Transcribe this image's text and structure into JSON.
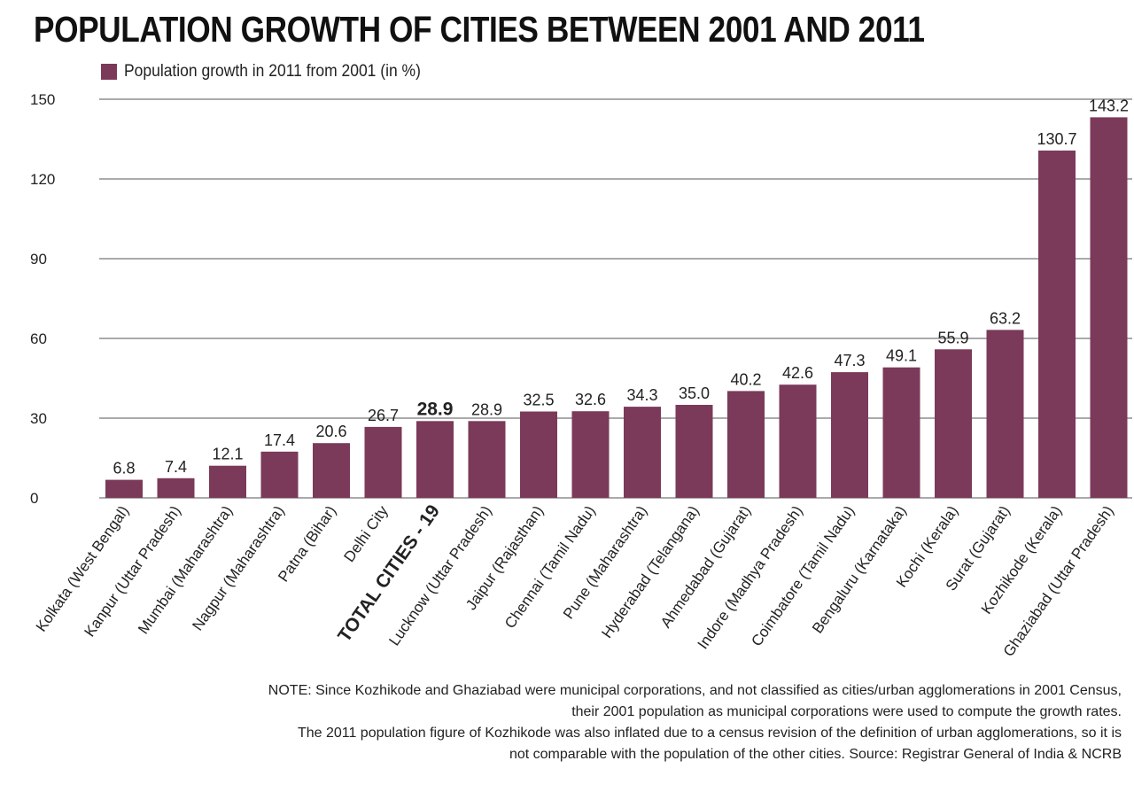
{
  "chart_data": {
    "type": "bar",
    "title": "POPULATION GROWTH OF CITIES BETWEEN 2001 AND 2011",
    "legend": [
      {
        "label": "Population growth in 2011 from 2001    (in %)",
        "color": "#7b3a5a"
      }
    ],
    "xlabel": "",
    "ylabel": "",
    "ylim": [
      0,
      150
    ],
    "yticks": [
      0,
      30,
      60,
      90,
      120,
      150
    ],
    "grid": true,
    "legend_position": "top-left",
    "bar_color": "#7b3a5a",
    "categories": [
      "Kolkata (West Bengal)",
      "Kanpur (Uttar Pradesh)",
      "Mumbai (Maharashtra)",
      "Nagpur (Maharashtra)",
      "Patna (Bihar)",
      "Delhi City",
      "TOTAL CITIES - 19",
      "Lucknow (Uttar Pradesh)",
      "Jaipur (Rajasthan)",
      "Chennai (Tamil Nadu)",
      "Pune (Maharashtra)",
      "Hyderabad (Telangana)",
      "Ahmedabad (Gujarat)",
      "Indore (Madhya Pradesh)",
      "Coimbatore (Tamil Nadu)",
      "Bengaluru (Karnataka)",
      "Kochi (Kerala)",
      "Surat (Gujarat)",
      "Kozhikode (Kerala)",
      "Ghaziabad (Uttar Pradesh)"
    ],
    "values": [
      6.8,
      7.4,
      12.1,
      17.4,
      20.6,
      26.7,
      28.9,
      28.9,
      32.5,
      32.6,
      34.3,
      35.0,
      40.2,
      42.6,
      47.3,
      49.1,
      55.9,
      63.2,
      130.7,
      143.2
    ],
    "value_labels": [
      "6.8",
      "7.4",
      "12.1",
      "17.4",
      "20.6",
      "26.7",
      "28.9",
      "28.9",
      "32.5",
      "32.6",
      "34.3",
      "35.0",
      "40.2",
      "42.6",
      "47.3",
      "49.1",
      "55.9",
      "63.2",
      "130.7",
      "143.2"
    ],
    "highlighted_category": "TOTAL CITIES - 19",
    "annotations": [
      "NOTE: Since Kozhikode and Ghaziabad were municipal corporations, and not classified as cities/urban agglomerations in 2001 Census,",
      "their 2001 population as municipal corporations were used to compute the growth rates.",
      "The 2011 population figure of Kozhikode was also inflated due to a census revision of the definition of urban agglomerations, so it is",
      "not comparable with the population of the other cities. Source: Registrar General of India & NCRB"
    ]
  }
}
